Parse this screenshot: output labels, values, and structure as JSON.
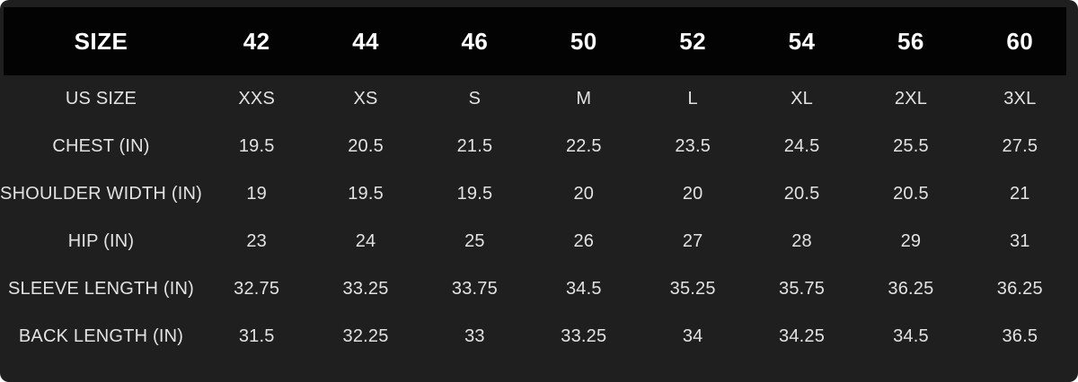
{
  "colors": {
    "page_background": "#1f1f1f",
    "header_bar": "#030303",
    "header_text": "#ffffff",
    "body_text": "#e2e2e2"
  },
  "chart_data": {
    "type": "table",
    "columns": [
      "SIZE",
      "42",
      "44",
      "46",
      "50",
      "52",
      "54",
      "56",
      "60"
    ],
    "rows": [
      {
        "label": "US SIZE",
        "values": [
          "XXS",
          "XS",
          "S",
          "M",
          "L",
          "XL",
          "2XL",
          "3XL"
        ]
      },
      {
        "label": "CHEST (IN)",
        "values": [
          "19.5",
          "20.5",
          "21.5",
          "22.5",
          "23.5",
          "24.5",
          "25.5",
          "27.5"
        ]
      },
      {
        "label": "SHOULDER WIDTH (IN)",
        "values": [
          "19",
          "19.5",
          "19.5",
          "20",
          "20",
          "20.5",
          "20.5",
          "21"
        ]
      },
      {
        "label": "HIP (IN)",
        "values": [
          "23",
          "24",
          "25",
          "26",
          "27",
          "28",
          "29",
          "31"
        ]
      },
      {
        "label": "SLEEVE LENGTH (IN)",
        "values": [
          "32.75",
          "33.25",
          "33.75",
          "34.5",
          "35.25",
          "35.75",
          "36.25",
          "36.25"
        ]
      },
      {
        "label": "BACK LENGTH (IN)",
        "values": [
          "31.5",
          "32.25",
          "33",
          "33.25",
          "34",
          "34.25",
          "34.5",
          "36.5"
        ]
      }
    ]
  }
}
